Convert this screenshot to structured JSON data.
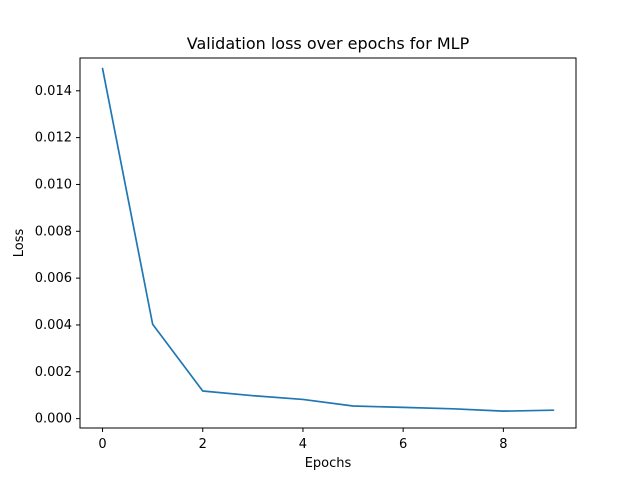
{
  "chart_data": {
    "type": "line",
    "title": "Validation loss over epochs for MLP",
    "xlabel": "Epochs",
    "ylabel": "Loss",
    "xlim": [
      -0.45,
      9.45
    ],
    "ylim": [
      -0.0004,
      0.0154
    ],
    "x_ticks": [
      0,
      2,
      4,
      6,
      8
    ],
    "y_ticks": [
      0.0,
      0.002,
      0.004,
      0.006,
      0.008,
      0.01,
      0.012,
      0.014
    ],
    "x_tick_labels": [
      "0",
      "2",
      "4",
      "6",
      "8"
    ],
    "y_tick_labels": [
      "0.000",
      "0.002",
      "0.004",
      "0.006",
      "0.008",
      "0.010",
      "0.012",
      "0.014"
    ],
    "grid": false,
    "colors": {
      "line": "#1f77b4",
      "axes": "#000000",
      "background": "#ffffff"
    },
    "series": [
      {
        "x": [
          0,
          1,
          2,
          3,
          4,
          5,
          6,
          7,
          8,
          9
        ],
        "y": [
          0.01495,
          0.00403,
          0.00118,
          0.00098,
          0.00082,
          0.00054,
          0.00048,
          0.00042,
          0.00032,
          0.00036
        ]
      }
    ]
  }
}
